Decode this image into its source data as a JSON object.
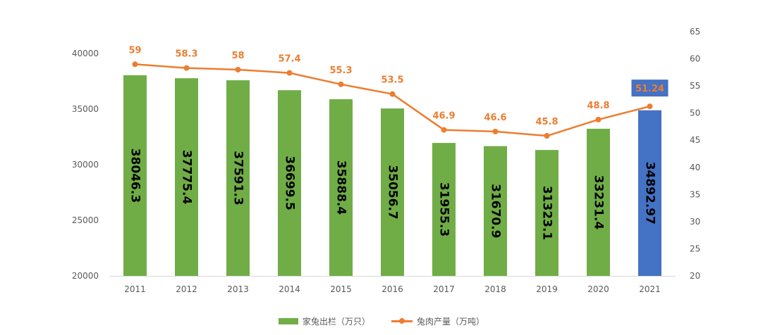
{
  "chart_data": {
    "type": "bar",
    "categories": [
      "2011",
      "2012",
      "2013",
      "2014",
      "2015",
      "2016",
      "2017",
      "2018",
      "2019",
      "2020",
      "2021"
    ],
    "series": [
      {
        "name": "家兔出栏（万只）",
        "kind": "bar",
        "axis": "left",
        "color": "#70AD47",
        "highlight_color": "#4472C4",
        "highlight_index": 10,
        "values": [
          38046.3,
          37775.4,
          37591.3,
          36699.5,
          35888.4,
          35056.7,
          31955.3,
          31670.9,
          31323.1,
          33231.4,
          34892.97
        ],
        "labels": [
          "38046.3",
          "37775.4",
          "37591.3",
          "36699.5",
          "35888.4",
          "35056.7",
          "31955.3",
          "31670.9",
          "31323.1",
          "33231.4",
          "34892.97"
        ]
      },
      {
        "name": "兔肉产量（万吨）",
        "kind": "line",
        "axis": "right",
        "color": "#ED7D31",
        "values": [
          59,
          58.3,
          58,
          57.4,
          55.3,
          53.5,
          46.9,
          46.6,
          45.8,
          48.8,
          51.24
        ],
        "labels": [
          "59",
          "58.3",
          "58",
          "57.4",
          "55.3",
          "53.5",
          "46.9",
          "46.6",
          "45.8",
          "48.8",
          "51.24"
        ]
      }
    ],
    "y_left": {
      "min": 20000,
      "max": 40000,
      "ticks": [
        "20000",
        "25000",
        "30000",
        "35000",
        "40000"
      ]
    },
    "y_right": {
      "min": 20,
      "max": 65,
      "ticks": [
        "20",
        "25",
        "30",
        "35",
        "40",
        "45",
        "50",
        "55",
        "60",
        "65"
      ]
    },
    "grid": false,
    "legend_position": "bottom"
  }
}
